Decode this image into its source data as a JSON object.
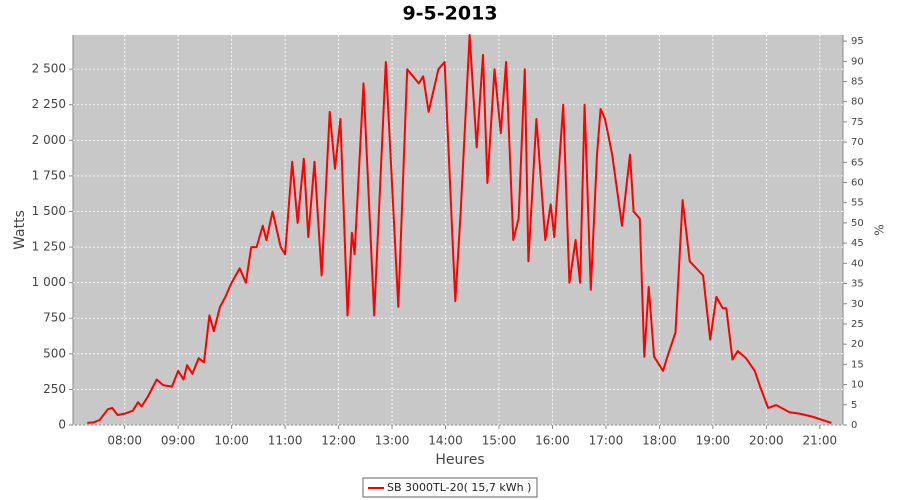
{
  "chart_data": {
    "type": "line",
    "title": "9-5-2013",
    "xlabel": "Heures",
    "ylabel": "Watts",
    "y2label": "%",
    "x": [
      "07:18",
      "07:25",
      "07:32",
      "07:41",
      "07:46",
      "07:52",
      "08:00",
      "08:09",
      "08:15",
      "08:19",
      "08:26",
      "08:36",
      "08:43",
      "08:53",
      "09:00",
      "09:06",
      "09:10",
      "09:16",
      "09:23",
      "09:29",
      "09:35",
      "09:40",
      "09:47",
      "09:53",
      "10:00",
      "10:09",
      "10:16",
      "10:22",
      "10:28",
      "10:35",
      "10:39",
      "10:46",
      "10:55",
      "11:00",
      "11:08",
      "11:14",
      "11:21",
      "11:26",
      "11:33",
      "11:41",
      "11:50",
      "11:56",
      "12:02",
      "12:10",
      "12:15",
      "12:18",
      "12:28",
      "12:40",
      "12:53",
      "13:07",
      "13:17",
      "13:30",
      "13:35",
      "13:41",
      "13:52",
      "13:59",
      "14:11",
      "14:17",
      "14:27",
      "14:35",
      "14:42",
      "14:47",
      "14:55",
      "15:02",
      "15:08",
      "15:16",
      "15:22",
      "15:29",
      "15:33",
      "15:42",
      "15:52",
      "15:58",
      "16:02",
      "16:12",
      "16:19",
      "16:26",
      "16:31",
      "16:36",
      "16:43",
      "16:50",
      "16:54",
      "16:59",
      "17:07",
      "17:18",
      "17:27",
      "17:31",
      "17:38",
      "17:43",
      "17:48",
      "17:54",
      "18:04",
      "18:10",
      "18:18",
      "18:26",
      "18:34",
      "18:49",
      "18:57",
      "19:04",
      "19:11",
      "19:15",
      "19:22",
      "19:28",
      "19:37",
      "19:47",
      "19:53",
      "20:02",
      "20:11",
      "20:26",
      "20:37",
      "20:51",
      "21:13"
    ],
    "series": [
      {
        "name": "SB 3000TL-20( 15,7 kWh )",
        "color": "#ff0000",
        "values": [
          15,
          18,
          35,
          110,
          120,
          70,
          80,
          100,
          160,
          130,
          200,
          320,
          280,
          270,
          380,
          320,
          420,
          360,
          470,
          440,
          770,
          660,
          830,
          900,
          1000,
          1100,
          1000,
          1250,
          1250,
          1400,
          1300,
          1500,
          1250,
          1200,
          1850,
          1420,
          1870,
          1320,
          1850,
          1050,
          2200,
          1800,
          2150,
          770,
          1350,
          1200,
          2400,
          770,
          2550,
          830,
          2500,
          2400,
          2450,
          2200,
          2500,
          2550,
          870,
          1500,
          2740,
          1950,
          2600,
          1700,
          2500,
          2050,
          2550,
          1300,
          1450,
          2500,
          1150,
          2150,
          1300,
          1550,
          1320,
          2250,
          1000,
          1300,
          1000,
          2250,
          950,
          1900,
          2220,
          2150,
          1900,
          1400,
          1900,
          1500,
          1450,
          480,
          970,
          480,
          380,
          500,
          650,
          1580,
          1150,
          1050,
          600,
          900,
          820,
          820,
          460,
          520,
          470,
          380,
          270,
          120,
          140,
          90,
          80,
          60,
          15
        ]
      }
    ],
    "xlim": [
      "07:02",
      "21:26"
    ],
    "xticks": [
      "08:00",
      "09:00",
      "10:00",
      "11:00",
      "12:00",
      "13:00",
      "14:00",
      "15:00",
      "16:00",
      "17:00",
      "18:00",
      "19:00",
      "20:00",
      "21:00"
    ],
    "ylim": [
      0,
      2740
    ],
    "yticks": [
      0,
      250,
      500,
      750,
      {
        "value": 1000,
        "label": "1 000"
      },
      {
        "value": 1250,
        "label": "1 250"
      },
      {
        "value": 1500,
        "label": "1 500"
      },
      {
        "value": 1750,
        "label": "1 750"
      },
      {
        "value": 2000,
        "label": "2 000"
      },
      {
        "value": 2250,
        "label": "2 250"
      },
      {
        "value": 2500,
        "label": "2 500"
      }
    ],
    "y2lim": [
      0,
      96.5
    ],
    "y2ticks": [
      0,
      5,
      10,
      15,
      20,
      25,
      30,
      35,
      40,
      45,
      50,
      55,
      60,
      65,
      70,
      75,
      80,
      85,
      90,
      95
    ],
    "grid": true,
    "legend": "bottom"
  }
}
